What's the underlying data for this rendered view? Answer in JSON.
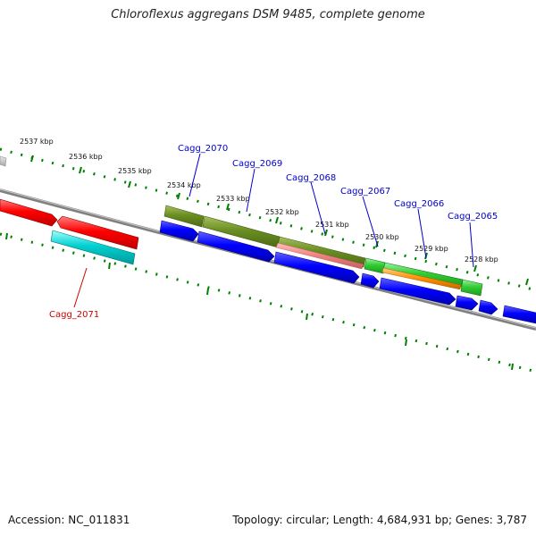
{
  "title": "Chloroflexus aggregans DSM 9485, complete genome",
  "footer": {
    "accession": "Accession: NC_011831",
    "summary": "Topology: circular; Length: 4,684,931 bp; Genes: 3,787"
  },
  "colors": {
    "backbone": "#808080",
    "ticks": "#008000",
    "label_blue": "#0000cc",
    "label_red": "#cc0000"
  },
  "scale_labels": [
    "2537 kbp",
    "2536 kbp",
    "2535 kbp",
    "2534 kbp",
    "2533 kbp",
    "2532 kbp",
    "2531 kbp",
    "2530 kbp",
    "2529 kbp",
    "2528 kbp"
  ],
  "gene_labels": [
    "Cagg_2070",
    "Cagg_2069",
    "Cagg_2068",
    "Cagg_2067",
    "Cagg_2066",
    "Cagg_2065",
    "Cagg_2071"
  ]
}
